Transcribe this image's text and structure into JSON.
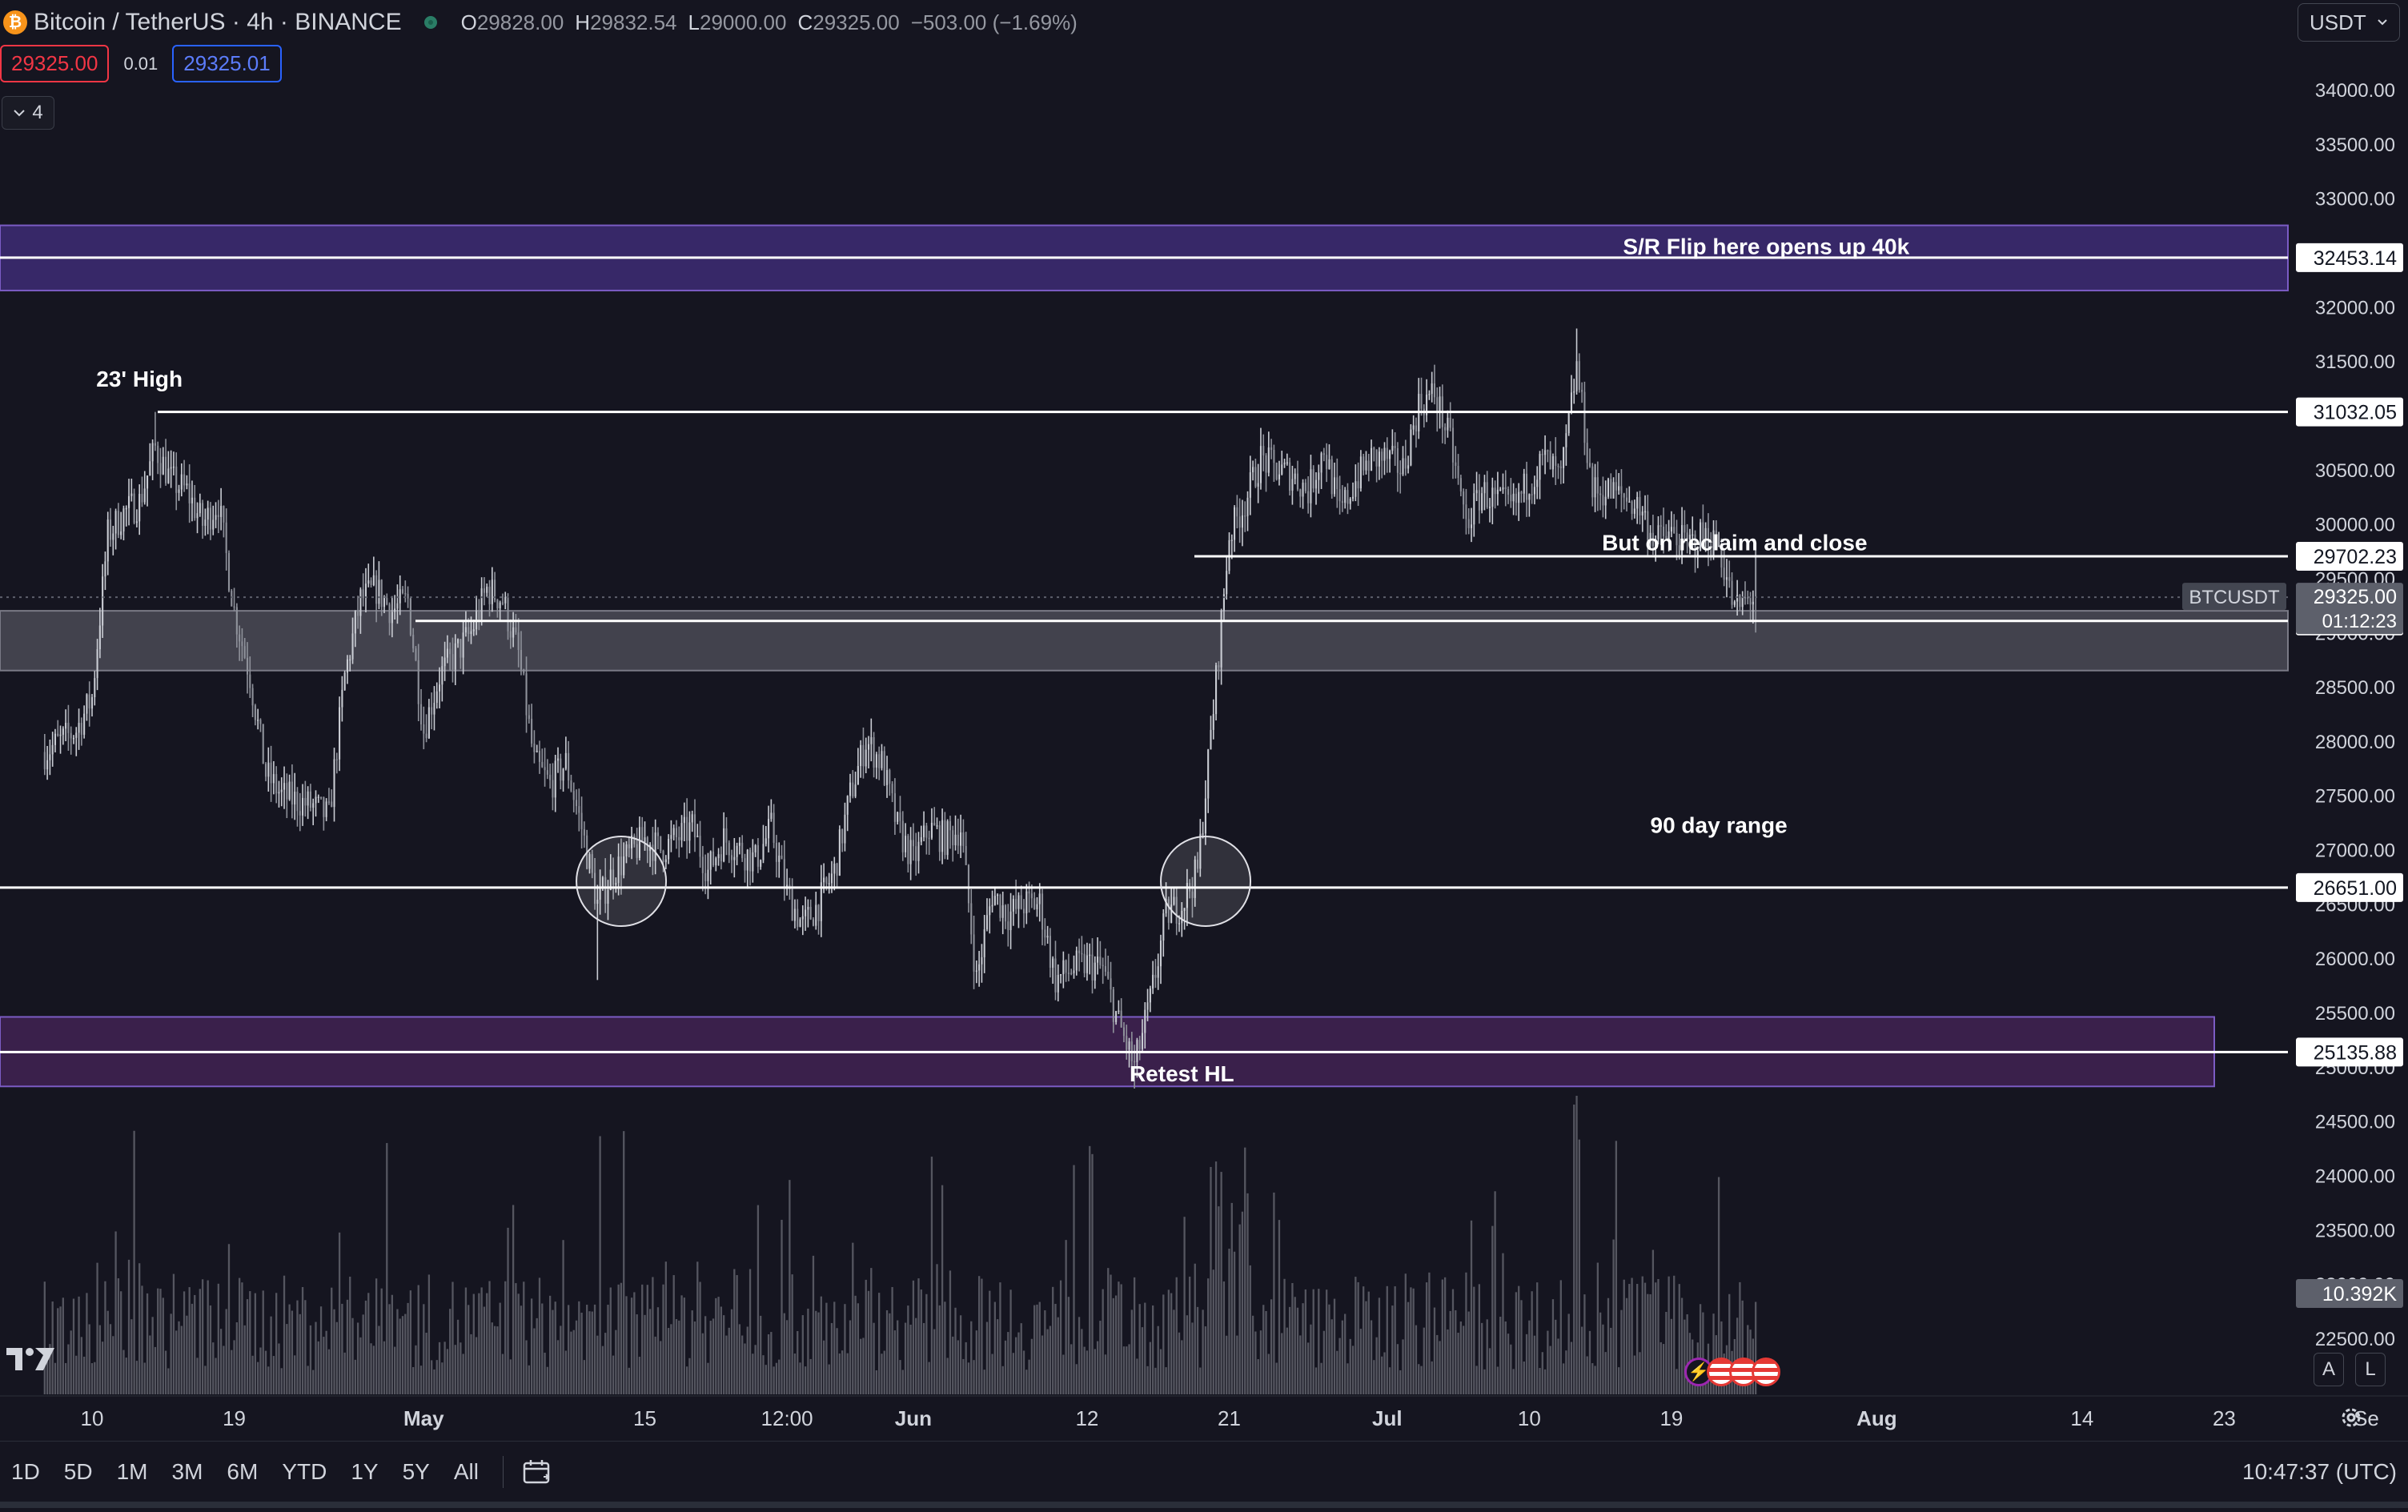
{
  "header": {
    "symbol": "Bitcoin / TetherUS · 4h · BINANCE",
    "ohlc": {
      "o_label": "O",
      "o": "29828.00",
      "h_label": "H",
      "h": "29832.54",
      "l_label": "L",
      "l": "29000.00",
      "c_label": "C",
      "c": "29325.00",
      "change": "−503.00 (−1.69%)"
    },
    "sell_price": "29325.00",
    "spread": "0.01",
    "buy_price": "29325.01",
    "indicators_count": "4",
    "currency": "USDT"
  },
  "toolbar": {
    "ranges": [
      "1D",
      "5D",
      "1M",
      "3M",
      "6M",
      "YTD",
      "1Y",
      "5Y",
      "All"
    ],
    "clock": "10:47:37 (UTC)"
  },
  "scale_buttons": {
    "auto": "A",
    "log": "L"
  },
  "chart_data": {
    "type": "candlestick",
    "title": "",
    "symbol": "BTCUSDT",
    "interval": "4h",
    "exchange": "BINANCE",
    "y_axis": {
      "min": 22000,
      "max": 34300,
      "ticks": [
        22500,
        23000,
        23500,
        24000,
        24500,
        25000,
        25500,
        26000,
        26500,
        27000,
        27500,
        28000,
        28500,
        29000,
        29500,
        30000,
        30500,
        31000,
        31500,
        32000,
        32500,
        33000,
        33500,
        34000
      ],
      "tick_labels": [
        "22500.00",
        "23000.00",
        "23500.00",
        "24000.00",
        "24500.00",
        "25000.00",
        "25500.00",
        "26000.00",
        "26500.00",
        "27000.00",
        "27500.00",
        "28000.00",
        "28500.00",
        "29000.00",
        "29500.00",
        "30000.00",
        "30500.00",
        "31000.00",
        "31500.00",
        "32000.00",
        "32500.00",
        "33000.00",
        "33500.00",
        "34000.00"
      ]
    },
    "x_axis": {
      "start": "2023-04-07",
      "end": "2023-09-02",
      "labels": [
        {
          "date": "2023-04-10",
          "text": "10"
        },
        {
          "date": "2023-04-19",
          "text": "19"
        },
        {
          "date": "2023-05-01",
          "text": "May"
        },
        {
          "date": "2023-05-15",
          "text": "15"
        },
        {
          "date": "2023-05-24",
          "text": "12:00"
        },
        {
          "date": "2023-06-01",
          "text": "Jun"
        },
        {
          "date": "2023-06-12",
          "text": "12"
        },
        {
          "date": "2023-06-21",
          "text": "21"
        },
        {
          "date": "2023-07-01",
          "text": "Jul"
        },
        {
          "date": "2023-07-10",
          "text": "10"
        },
        {
          "date": "2023-07-19",
          "text": "19"
        },
        {
          "date": "2023-08-01",
          "text": "Aug"
        },
        {
          "date": "2023-08-14",
          "text": "14"
        },
        {
          "date": "2023-08-23",
          "text": "23"
        },
        {
          "date": "2023-09-01",
          "text": "Se"
        }
      ]
    },
    "price_path": [
      [
        "2023-04-07",
        27900
      ],
      [
        "2023-04-09",
        28100
      ],
      [
        "2023-04-10",
        28400
      ],
      [
        "2023-04-11",
        29900
      ],
      [
        "2023-04-12",
        30100
      ],
      [
        "2023-04-13",
        30200
      ],
      [
        "2023-04-14",
        30700
      ],
      [
        "2023-04-15",
        30400
      ],
      [
        "2023-04-16",
        30300
      ],
      [
        "2023-04-17",
        30000
      ],
      [
        "2023-04-18",
        30200
      ],
      [
        "2023-04-19",
        29200
      ],
      [
        "2023-04-20",
        28600
      ],
      [
        "2023-04-21",
        27700
      ],
      [
        "2023-04-22",
        27500
      ],
      [
        "2023-04-24",
        27400
      ],
      [
        "2023-04-25",
        27300
      ],
      [
        "2023-04-26",
        28600
      ],
      [
        "2023-04-27",
        29300
      ],
      [
        "2023-04-28",
        29400
      ],
      [
        "2023-04-29",
        29200
      ],
      [
        "2023-04-30",
        29300
      ],
      [
        "2023-05-01",
        28100
      ],
      [
        "2023-05-02",
        28600
      ],
      [
        "2023-05-03",
        28800
      ],
      [
        "2023-05-04",
        29000
      ],
      [
        "2023-05-05",
        29400
      ],
      [
        "2023-05-06",
        29300
      ],
      [
        "2023-05-07",
        28800
      ],
      [
        "2023-05-08",
        27800
      ],
      [
        "2023-05-09",
        27600
      ],
      [
        "2023-05-10",
        27800
      ],
      [
        "2023-05-11",
        27200
      ],
      [
        "2023-05-12",
        26500
      ],
      [
        "2023-05-13",
        26800
      ],
      [
        "2023-05-15",
        27100
      ],
      [
        "2023-05-16",
        27000
      ],
      [
        "2023-05-18",
        27200
      ],
      [
        "2023-05-19",
        26800
      ],
      [
        "2023-05-20",
        27100
      ],
      [
        "2023-05-22",
        26900
      ],
      [
        "2023-05-23",
        27200
      ],
      [
        "2023-05-24",
        26600
      ],
      [
        "2023-05-25",
        26300
      ],
      [
        "2023-05-26",
        26500
      ],
      [
        "2023-05-27",
        26800
      ],
      [
        "2023-05-28",
        27500
      ],
      [
        "2023-05-29",
        28000
      ],
      [
        "2023-05-30",
        27800
      ],
      [
        "2023-05-31",
        27200
      ],
      [
        "2023-06-01",
        26900
      ],
      [
        "2023-06-02",
        27200
      ],
      [
        "2023-06-03",
        27100
      ],
      [
        "2023-06-04",
        27200
      ],
      [
        "2023-06-05",
        25800
      ],
      [
        "2023-06-06",
        26600
      ],
      [
        "2023-06-07",
        26400
      ],
      [
        "2023-06-08",
        26500
      ],
      [
        "2023-06-09",
        26500
      ],
      [
        "2023-06-10",
        25800
      ],
      [
        "2023-06-11",
        25900
      ],
      [
        "2023-06-12",
        25950
      ],
      [
        "2023-06-13",
        25900
      ],
      [
        "2023-06-14",
        25400
      ],
      [
        "2023-06-15",
        25000
      ],
      [
        "2023-06-16",
        25600
      ],
      [
        "2023-06-17",
        26400
      ],
      [
        "2023-06-18",
        26500
      ],
      [
        "2023-06-19",
        26800
      ],
      [
        "2023-06-20",
        28300
      ],
      [
        "2023-06-21",
        29900
      ],
      [
        "2023-06-22",
        30200
      ],
      [
        "2023-06-23",
        30600
      ],
      [
        "2023-06-24",
        30500
      ],
      [
        "2023-06-25",
        30450
      ],
      [
        "2023-06-26",
        30300
      ],
      [
        "2023-06-27",
        30700
      ],
      [
        "2023-06-28",
        30100
      ],
      [
        "2023-06-29",
        30400
      ],
      [
        "2023-06-30",
        30600
      ],
      [
        "2023-07-01",
        30600
      ],
      [
        "2023-07-02",
        30500
      ],
      [
        "2023-07-03",
        31100
      ],
      [
        "2023-07-04",
        31200
      ],
      [
        "2023-07-05",
        30750
      ],
      [
        "2023-07-06",
        30000
      ],
      [
        "2023-07-07",
        30300
      ],
      [
        "2023-07-08",
        30200
      ],
      [
        "2023-07-09",
        30150
      ],
      [
        "2023-07-10",
        30400
      ],
      [
        "2023-07-11",
        30600
      ],
      [
        "2023-07-12",
        30400
      ],
      [
        "2023-07-13",
        31450
      ],
      [
        "2023-07-14",
        30300
      ],
      [
        "2023-07-15",
        30300
      ],
      [
        "2023-07-16",
        30250
      ],
      [
        "2023-07-17",
        30150
      ],
      [
        "2023-07-18",
        29850
      ],
      [
        "2023-07-19",
        29900
      ],
      [
        "2023-07-20",
        29800
      ],
      [
        "2023-07-21",
        29900
      ],
      [
        "2023-07-22",
        29800
      ],
      [
        "2023-07-23",
        29200
      ],
      [
        "2023-07-24",
        29325
      ]
    ],
    "highlights": [
      {
        "date": "2023-04-14",
        "price": 31032.05,
        "kind": "high"
      },
      {
        "date": "2023-05-12",
        "price": 25800,
        "kind": "low"
      },
      {
        "date": "2023-06-15",
        "price": 24800,
        "kind": "low"
      },
      {
        "date": "2023-07-13",
        "price": 31800,
        "kind": "high"
      }
    ],
    "last_price": 29325.0,
    "levels": [
      {
        "price": 32453.14,
        "label": "32453.14"
      },
      {
        "price": 31032.05,
        "label": "31032.05"
      },
      {
        "price": 29702.23,
        "label": "29702.23"
      },
      {
        "price": 29106.74,
        "label": "29106.74"
      },
      {
        "price": 26651.0,
        "label": "26651.00"
      },
      {
        "price": 25135.88,
        "label": "25135.88"
      }
    ],
    "zones": [
      {
        "from": 32150,
        "to": 32750,
        "color": "#3b2a70"
      },
      {
        "from": 28650,
        "to": 29200,
        "color": "#4a4a56"
      },
      {
        "from": 24820,
        "to": 25460,
        "color": "#3e2150"
      }
    ],
    "circles": [
      {
        "date": "2023-05-13",
        "price": 26650
      },
      {
        "date": "2023-06-19",
        "price": 26650
      }
    ],
    "annotations": [
      {
        "text": "S/R Flip here opens up 40k",
        "price": 32560,
        "date": "2023-07-25"
      },
      {
        "text": "23' High",
        "price": 31340,
        "date": "2023-04-13"
      },
      {
        "text": "But on reclaim and close",
        "price": 29830,
        "date": "2023-07-23"
      },
      {
        "text": "90 day range",
        "price": 27230,
        "date": "2023-07-22"
      },
      {
        "text": "Retest HL",
        "price": 24940,
        "date": "2023-06-18"
      }
    ],
    "price_label": {
      "symbol": "BTCUSDT",
      "price": "29325.00",
      "countdown": "01:12:23"
    },
    "volume": {
      "last": "10.392K"
    },
    "colors": {
      "candle": "#b2b5be",
      "level": "#ffffff",
      "background": "#151520"
    }
  }
}
